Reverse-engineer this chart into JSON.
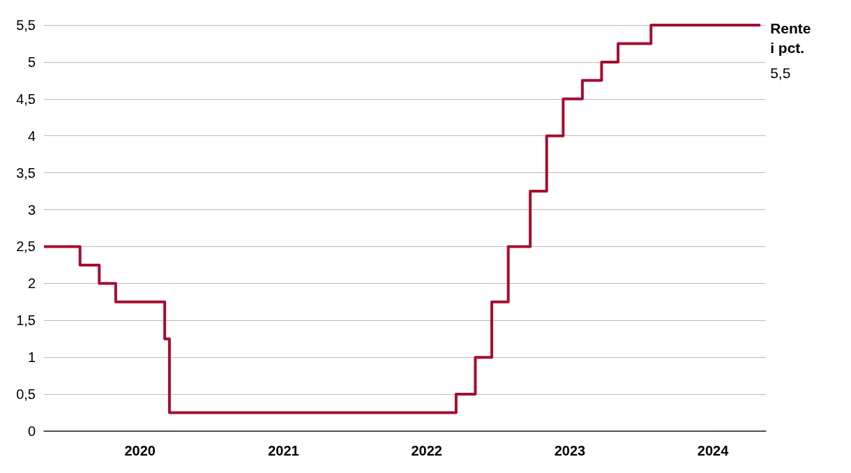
{
  "chart_data": {
    "type": "step",
    "x": [
      "2019-05-01",
      "2019-08-01",
      "2019-09-19",
      "2019-10-31",
      "2020-03-04",
      "2020-03-16",
      "2022-03-17",
      "2022-05-05",
      "2022-06-16",
      "2022-07-28",
      "2022-09-22",
      "2022-11-03",
      "2022-12-15",
      "2023-02-02",
      "2023-03-23",
      "2023-05-04",
      "2023-07-27",
      "2024-05-01"
    ],
    "series": [
      {
        "name": "Rente i pct.",
        "color": "#a50e2f",
        "values": [
          2.5,
          2.25,
          2.0,
          1.75,
          1.25,
          0.25,
          0.5,
          1.0,
          1.75,
          2.5,
          3.25,
          4.0,
          4.5,
          4.75,
          5.0,
          5.25,
          5.5,
          5.5
        ],
        "value_labels": [
          null,
          null,
          null,
          null,
          null,
          null,
          null,
          null,
          null,
          null,
          null,
          null,
          null,
          null,
          null,
          null,
          null,
          "5,5"
        ]
      }
    ],
    "xlim": [
      "2019-05-01",
      "2024-05-15"
    ],
    "xticks": [
      "2020",
      "2021",
      "2022",
      "2023",
      "2024"
    ],
    "ylim": [
      0,
      5.5
    ],
    "yticks": [
      0,
      {
        "value": 0.5,
        "label": "0,5"
      },
      1,
      {
        "value": 1.5,
        "label": "1,5"
      },
      2,
      {
        "value": 2.5,
        "label": "2,5"
      },
      3,
      {
        "value": 3.5,
        "label": "3,5"
      },
      4,
      {
        "value": 4.5,
        "label": "4,5"
      },
      5,
      {
        "value": 5.5,
        "label": "5,5"
      }
    ],
    "grid": "y",
    "legend": false,
    "marker": "none",
    "line_style": "solid"
  }
}
